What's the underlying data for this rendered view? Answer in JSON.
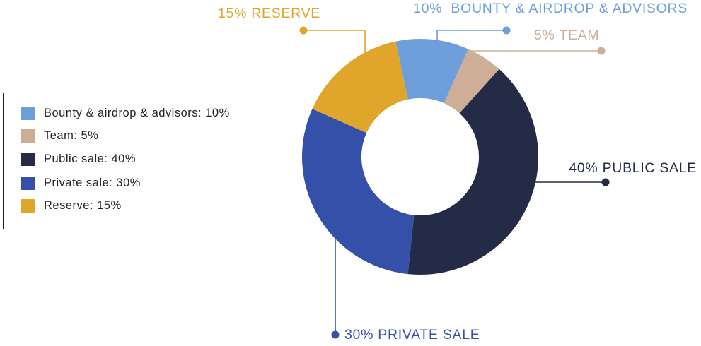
{
  "chart_data": {
    "type": "pie",
    "donut": true,
    "unit": "%",
    "legend_position": "left",
    "slices": [
      {
        "label": "Bounty & airdrop & advisors",
        "value": 10,
        "color": "#6f9fdb"
      },
      {
        "label": "Team",
        "value": 5,
        "color": "#cfae97"
      },
      {
        "label": "Public sale",
        "value": 40,
        "color": "#242b47"
      },
      {
        "label": "Private sale",
        "value": 30,
        "color": "#3450a8"
      },
      {
        "label": "Reserve",
        "value": 15,
        "color": "#dfa62b"
      }
    ]
  },
  "legend": {
    "separator": ": "
  },
  "callouts": {
    "reserve": "15% RESERVE",
    "bounty": "10%  BOUNTY & AIRDROP & ADVISORS",
    "team": "5% TEAM",
    "public_sale": "40% PUBLIC SALE",
    "private_sale": "30% PRIVATE SALE"
  },
  "colors": {
    "background": "#ffffff",
    "legend_border": "#1e1e1e",
    "legend_text": "#222222"
  }
}
